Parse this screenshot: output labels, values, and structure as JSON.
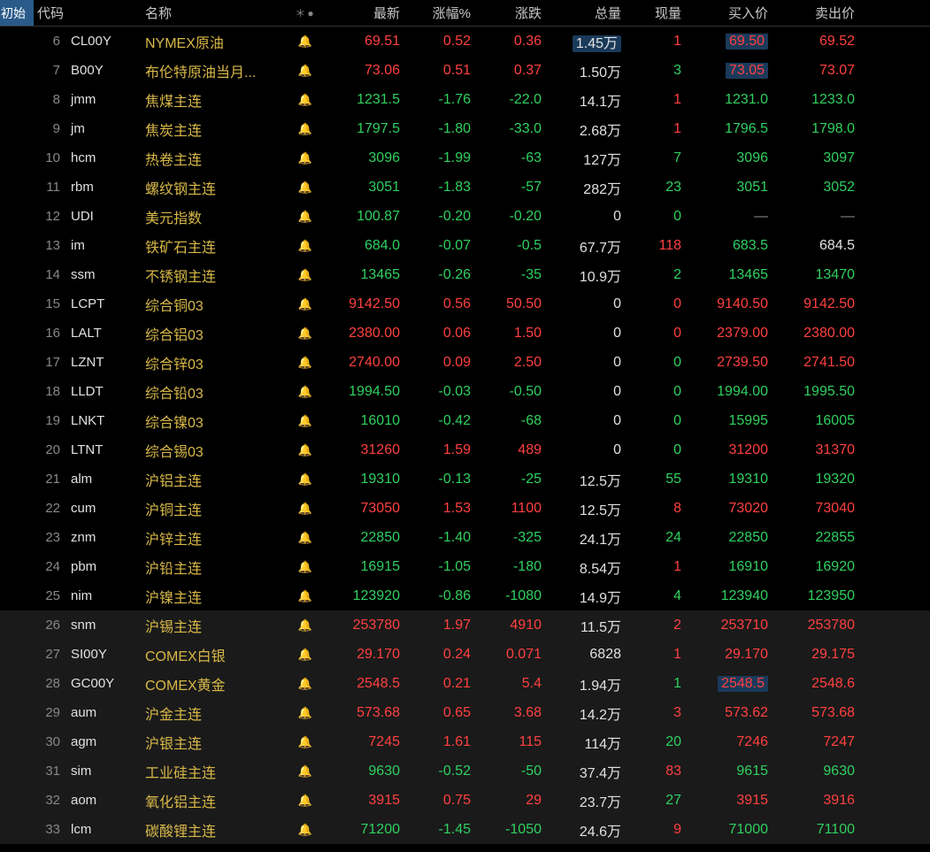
{
  "colors": {
    "bg": "#000000",
    "up": "#ff4040",
    "down": "#30d060",
    "neutral": "#cccccc",
    "name": "#d8b848",
    "idx": "#888888",
    "header_start_bg": "#2a5a8a",
    "selection_bg": "#1a3a5a",
    "row_highlight": "#1a1a1a",
    "bell_inactive": "#555555",
    "bell_active": "#e85030"
  },
  "header": {
    "start": "初始",
    "code": "代码",
    "name": "名称",
    "star": "＊●",
    "last": "最新",
    "pct": "涨幅%",
    "chg": "涨跌",
    "vol": "总量",
    "now": "现量",
    "bid": "买入价",
    "ask": "卖出价"
  },
  "rows": [
    {
      "idx": "6",
      "code": "CL00Y",
      "name": "NYMEX原油",
      "bell": "normal",
      "last": "69.51",
      "pct": "0.52",
      "chg": "0.36",
      "vol": "1.45万",
      "now": "1",
      "bid": "69.50",
      "ask": "69.52",
      "dir": "up",
      "now_dir": "up",
      "vol_sel": true,
      "bid_sel": true
    },
    {
      "idx": "7",
      "code": "B00Y",
      "name": "布伦特原油当月...",
      "bell": "normal",
      "last": "73.06",
      "pct": "0.51",
      "chg": "0.37",
      "vol": "1.50万",
      "now": "3",
      "bid": "73.05",
      "ask": "73.07",
      "dir": "up",
      "now_dir": "dn",
      "bid_sel": true
    },
    {
      "idx": "8",
      "code": "jmm",
      "name": "焦煤主连",
      "bell": "normal",
      "last": "1231.5",
      "pct": "-1.76",
      "chg": "-22.0",
      "vol": "14.1万",
      "now": "1",
      "bid": "1231.0",
      "ask": "1233.0",
      "dir": "dn",
      "now_dir": "up"
    },
    {
      "idx": "9",
      "code": "jm",
      "name": "焦炭主连",
      "bell": "normal",
      "last": "1797.5",
      "pct": "-1.80",
      "chg": "-33.0",
      "vol": "2.68万",
      "now": "1",
      "bid": "1796.5",
      "ask": "1798.0",
      "dir": "dn",
      "now_dir": "up"
    },
    {
      "idx": "10",
      "code": "hcm",
      "name": "热卷主连",
      "bell": "normal",
      "last": "3096",
      "pct": "-1.99",
      "chg": "-63",
      "vol": "127万",
      "now": "7",
      "bid": "3096",
      "ask": "3097",
      "dir": "dn",
      "now_dir": "dn"
    },
    {
      "idx": "11",
      "code": "rbm",
      "name": "螺纹钢主连",
      "bell": "normal",
      "last": "3051",
      "pct": "-1.83",
      "chg": "-57",
      "vol": "282万",
      "now": "23",
      "bid": "3051",
      "ask": "3052",
      "dir": "dn",
      "now_dir": "dn"
    },
    {
      "idx": "12",
      "code": "UDI",
      "name": "美元指数",
      "bell": "normal",
      "last": "100.87",
      "pct": "-0.20",
      "chg": "-0.20",
      "vol": "0",
      "now": "0",
      "bid": "—",
      "ask": "—",
      "dir": "dn",
      "now_dir": "dn",
      "bid_ask_dash": true
    },
    {
      "idx": "13",
      "code": "im",
      "name": "铁矿石主连",
      "bell": "normal",
      "last": "684.0",
      "pct": "-0.07",
      "chg": "-0.5",
      "vol": "67.7万",
      "now": "118",
      "bid": "683.5",
      "ask": "684.5",
      "dir": "dn",
      "now_dir": "up",
      "bid_dir": "dn",
      "ask_dir": "white"
    },
    {
      "idx": "14",
      "code": "ssm",
      "name": "不锈钢主连",
      "bell": "normal",
      "last": "13465",
      "pct": "-0.26",
      "chg": "-35",
      "vol": "10.9万",
      "now": "2",
      "bid": "13465",
      "ask": "13470",
      "dir": "dn",
      "now_dir": "dn"
    },
    {
      "idx": "15",
      "code": "LCPT",
      "name": "综合铜03",
      "bell": "normal",
      "last": "9142.50",
      "pct": "0.56",
      "chg": "50.50",
      "vol": "0",
      "now": "0",
      "bid": "9140.50",
      "ask": "9142.50",
      "dir": "up",
      "now_dir": "up"
    },
    {
      "idx": "16",
      "code": "LALT",
      "name": "综合铝03",
      "bell": "normal",
      "last": "2380.00",
      "pct": "0.06",
      "chg": "1.50",
      "vol": "0",
      "now": "0",
      "bid": "2379.00",
      "ask": "2380.00",
      "dir": "up",
      "now_dir": "up"
    },
    {
      "idx": "17",
      "code": "LZNT",
      "name": "综合锌03",
      "bell": "normal",
      "last": "2740.00",
      "pct": "0.09",
      "chg": "2.50",
      "vol": "0",
      "now": "0",
      "bid": "2739.50",
      "ask": "2741.50",
      "dir": "up",
      "now_dir": "dn",
      "bid_dir": "up",
      "ask_dir": "up"
    },
    {
      "idx": "18",
      "code": "LLDT",
      "name": "综合铅03",
      "bell": "normal",
      "last": "1994.50",
      "pct": "-0.03",
      "chg": "-0.50",
      "vol": "0",
      "now": "0",
      "bid": "1994.00",
      "ask": "1995.50",
      "dir": "dn",
      "now_dir": "dn"
    },
    {
      "idx": "19",
      "code": "LNKT",
      "name": "综合镍03",
      "bell": "normal",
      "last": "16010",
      "pct": "-0.42",
      "chg": "-68",
      "vol": "0",
      "now": "0",
      "bid": "15995",
      "ask": "16005",
      "dir": "dn",
      "now_dir": "dn"
    },
    {
      "idx": "20",
      "code": "LTNT",
      "name": "综合锡03",
      "bell": "normal",
      "last": "31260",
      "pct": "1.59",
      "chg": "489",
      "vol": "0",
      "now": "0",
      "bid": "31200",
      "ask": "31370",
      "dir": "up",
      "now_dir": "dn",
      "bid_dir": "up",
      "ask_dir": "up"
    },
    {
      "idx": "21",
      "code": "alm",
      "name": "沪铝主连",
      "bell": "normal",
      "last": "19310",
      "pct": "-0.13",
      "chg": "-25",
      "vol": "12.5万",
      "now": "55",
      "bid": "19310",
      "ask": "19320",
      "dir": "dn",
      "now_dir": "dn"
    },
    {
      "idx": "22",
      "code": "cum",
      "name": "沪铜主连",
      "bell": "active",
      "last": "73050",
      "pct": "1.53",
      "chg": "1100",
      "vol": "12.5万",
      "now": "8",
      "bid": "73020",
      "ask": "73040",
      "dir": "up",
      "now_dir": "up"
    },
    {
      "idx": "23",
      "code": "znm",
      "name": "沪锌主连",
      "bell": "normal",
      "last": "22850",
      "pct": "-1.40",
      "chg": "-325",
      "vol": "24.1万",
      "now": "24",
      "bid": "22850",
      "ask": "22855",
      "dir": "dn",
      "now_dir": "dn"
    },
    {
      "idx": "24",
      "code": "pbm",
      "name": "沪铅主连",
      "bell": "normal",
      "last": "16915",
      "pct": "-1.05",
      "chg": "-180",
      "vol": "8.54万",
      "now": "1",
      "bid": "16910",
      "ask": "16920",
      "dir": "dn",
      "now_dir": "up"
    },
    {
      "idx": "25",
      "code": "nim",
      "name": "沪镍主连",
      "bell": "normal",
      "last": "123920",
      "pct": "-0.86",
      "chg": "-1080",
      "vol": "14.9万",
      "now": "4",
      "bid": "123940",
      "ask": "123950",
      "dir": "dn",
      "now_dir": "dn"
    },
    {
      "idx": "26",
      "code": "snm",
      "name": "沪锡主连",
      "bell": "normal",
      "last": "253780",
      "pct": "1.97",
      "chg": "4910",
      "vol": "11.5万",
      "now": "2",
      "bid": "253710",
      "ask": "253780",
      "dir": "up",
      "now_dir": "up",
      "hl": true
    },
    {
      "idx": "27",
      "code": "SI00Y",
      "name": "COMEX白银",
      "bell": "active",
      "last": "29.170",
      "pct": "0.24",
      "chg": "0.071",
      "vol": "6828",
      "now": "1",
      "bid": "29.170",
      "ask": "29.175",
      "dir": "up",
      "now_dir": "up",
      "hl": true
    },
    {
      "idx": "28",
      "code": "GC00Y",
      "name": "COMEX黄金",
      "bell": "normal",
      "last": "2548.5",
      "pct": "0.21",
      "chg": "5.4",
      "vol": "1.94万",
      "now": "1",
      "bid": "2548.5",
      "ask": "2548.6",
      "dir": "up",
      "now_dir": "dn",
      "bid_sel": true,
      "hl": true
    },
    {
      "idx": "29",
      "code": "aum",
      "name": "沪金主连",
      "bell": "active",
      "last": "573.68",
      "pct": "0.65",
      "chg": "3.68",
      "vol": "14.2万",
      "now": "3",
      "bid": "573.62",
      "ask": "573.68",
      "dir": "up",
      "now_dir": "up",
      "hl": true
    },
    {
      "idx": "30",
      "code": "agm",
      "name": "沪银主连",
      "bell": "normal",
      "last": "7245",
      "pct": "1.61",
      "chg": "115",
      "vol": "114万",
      "now": "20",
      "bid": "7246",
      "ask": "7247",
      "dir": "up",
      "now_dir": "dn",
      "bid_dir": "up",
      "ask_dir": "up",
      "hl": true
    },
    {
      "idx": "31",
      "code": "sim",
      "name": "工业硅主连",
      "bell": "normal",
      "last": "9630",
      "pct": "-0.52",
      "chg": "-50",
      "vol": "37.4万",
      "now": "83",
      "bid": "9615",
      "ask": "9630",
      "dir": "dn",
      "now_dir": "up",
      "hl": true
    },
    {
      "idx": "32",
      "code": "aom",
      "name": "氧化铝主连",
      "bell": "normal",
      "last": "3915",
      "pct": "0.75",
      "chg": "29",
      "vol": "23.7万",
      "now": "27",
      "bid": "3915",
      "ask": "3916",
      "dir": "up",
      "now_dir": "dn",
      "bid_dir": "up",
      "ask_dir": "up",
      "hl": true
    },
    {
      "idx": "33",
      "code": "lcm",
      "name": "碳酸锂主连",
      "bell": "normal",
      "last": "71200",
      "pct": "-1.45",
      "chg": "-1050",
      "vol": "24.6万",
      "now": "9",
      "bid": "71000",
      "ask": "71100",
      "dir": "dn",
      "now_dir": "up",
      "hl": true
    }
  ]
}
